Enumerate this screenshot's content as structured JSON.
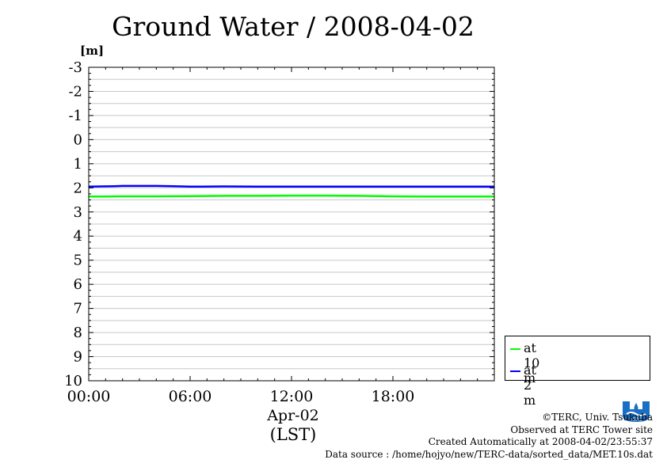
{
  "chart_data": {
    "type": "line",
    "title": "Ground Water / 2008-04-02",
    "ylabel": "[m]",
    "ylim": [
      -3,
      10
    ],
    "y_inverted": true,
    "yticks": [
      -3,
      -2,
      -1,
      0,
      1,
      2,
      3,
      4,
      5,
      6,
      7,
      8,
      9,
      10
    ],
    "xlim": [
      0,
      24
    ],
    "xticks": [
      0,
      6,
      12,
      18
    ],
    "xtick_labels": [
      "00:00",
      "06:00",
      "12:00",
      "18:00"
    ],
    "xlabel_date": "Apr-02",
    "xlabel_tz": "(LST)",
    "grid": true,
    "legend_position": "bottom-right",
    "series": [
      {
        "name": "at 10 m",
        "color": "#00ff00",
        "x": [
          0,
          2,
          4,
          6,
          8,
          10,
          12,
          14,
          16,
          18,
          20,
          22,
          24
        ],
        "y": [
          2.36,
          2.35,
          2.35,
          2.34,
          2.33,
          2.33,
          2.32,
          2.32,
          2.33,
          2.35,
          2.36,
          2.36,
          2.36
        ]
      },
      {
        "name": "at 2 m",
        "color": "#0000ff",
        "x": [
          0,
          1.5,
          2,
          4,
          5,
          6,
          8,
          10,
          12,
          14,
          16,
          18,
          20,
          22,
          24
        ],
        "y": [
          1.95,
          1.93,
          1.92,
          1.92,
          1.93,
          1.95,
          1.94,
          1.95,
          1.95,
          1.95,
          1.95,
          1.95,
          1.95,
          1.95,
          1.95
        ]
      }
    ]
  },
  "credits": {
    "copyright": "©TERC, Univ. Tsukuba",
    "site": "Observed at TERC Tower site",
    "created": "Created Automatically at 2008-04-02/23:55:37",
    "source": "Data source : /home/hojyo/new/TERC-data/sorted_data/MET.10s.dat"
  },
  "logo": {
    "text": "TERC"
  }
}
